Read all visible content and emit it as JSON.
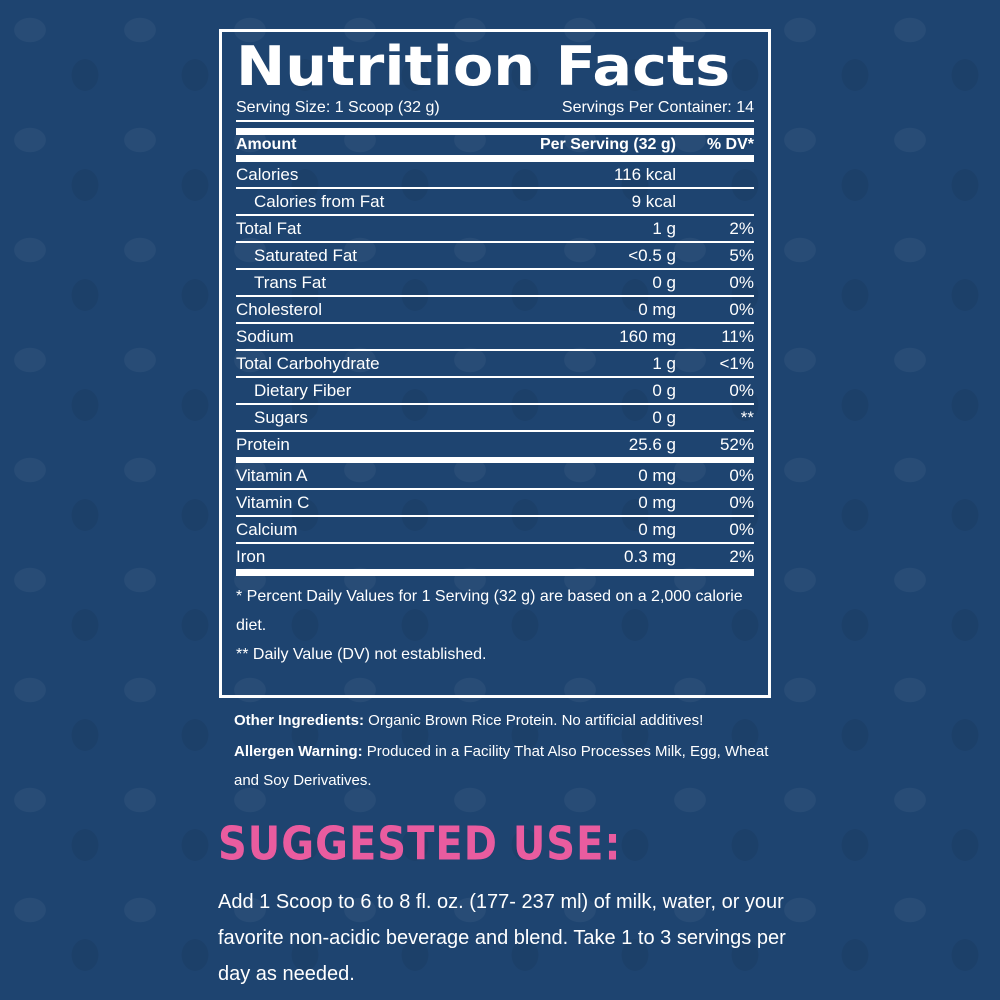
{
  "label": {
    "title": "Nutrition Facts",
    "serving_size": "Serving Size: 1 Scoop (32 g)",
    "servings_per_container": "Servings Per Container: 14",
    "header": {
      "amount": "Amount",
      "per_serving": "Per Serving (32 g)",
      "dv": "% DV*"
    },
    "rows": [
      {
        "name": "Calories",
        "amount": "116 kcal",
        "dv": "",
        "indent": false
      },
      {
        "name": "Calories from Fat",
        "amount": "9 kcal",
        "dv": "",
        "indent": true
      },
      {
        "name": "Total Fat",
        "amount": "1 g",
        "dv": "2%",
        "indent": false
      },
      {
        "name": "Saturated Fat",
        "amount": "<0.5 g",
        "dv": "5%",
        "indent": true
      },
      {
        "name": "Trans Fat",
        "amount": "0 g",
        "dv": "0%",
        "indent": true
      },
      {
        "name": "Cholesterol",
        "amount": "0 mg",
        "dv": "0%",
        "indent": false
      },
      {
        "name": "Sodium",
        "amount": "160 mg",
        "dv": "11%",
        "indent": false
      },
      {
        "name": "Total Carbohydrate",
        "amount": "1 g",
        "dv": "<1%",
        "indent": false
      },
      {
        "name": "Dietary Fiber",
        "amount": "0 g",
        "dv": "0%",
        "indent": true
      },
      {
        "name": "Sugars",
        "amount": "0 g",
        "dv": "**",
        "indent": true
      },
      {
        "name": "Protein",
        "amount": "25.6 g",
        "dv": "52%",
        "indent": false
      },
      {
        "name": "Vitamin A",
        "amount": "0 mg",
        "dv": "0%",
        "indent": false
      },
      {
        "name": "Vitamin C",
        "amount": "0 mg",
        "dv": "0%",
        "indent": false
      },
      {
        "name": "Calcium",
        "amount": "0 mg",
        "dv": "0%",
        "indent": false
      },
      {
        "name": "Iron",
        "amount": "0.3 mg",
        "dv": "2%",
        "indent": false
      }
    ],
    "footnote1": "* Percent Daily Values for 1 Serving (32 g) are based on a 2,000 calorie diet.",
    "footnote2": "** Daily Value (DV) not established."
  },
  "ingredients": {
    "label": "Other Ingredients:",
    "text": " Organic Brown Rice Protein. No artificial additives!"
  },
  "allergen": {
    "label": "Allergen Warning:",
    "text": " Produced in a Facility That Also Processes Milk, Egg, Wheat and Soy Derivatives."
  },
  "suggested_use": {
    "title": "SUGGESTED USE:",
    "text": "Add 1 Scoop to 6 to 8 fl. oz. (177- 237 ml) of milk, water, or your favorite non-acidic beverage and blend. Take 1 to 3 servings per day as needed."
  },
  "colors": {
    "background": "#1e4470",
    "accent": "#e95c9f",
    "text": "#ffffff"
  }
}
